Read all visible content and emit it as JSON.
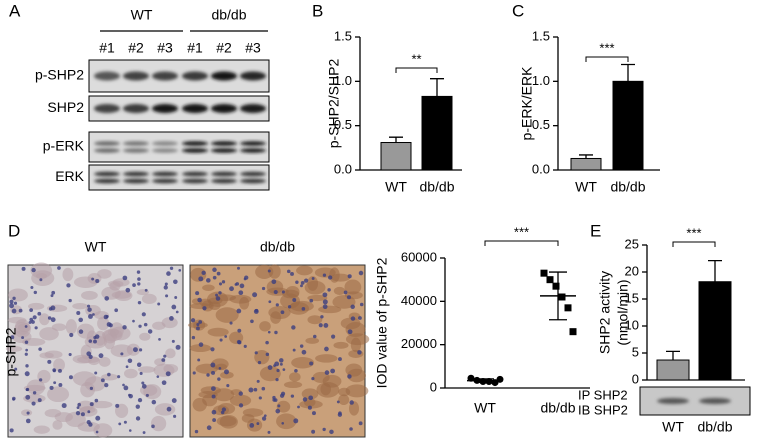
{
  "panel_labels": [
    "A",
    "B",
    "C",
    "D",
    "E"
  ],
  "blot_a": {
    "groups": [
      "WT",
      "db/db"
    ],
    "lanes": [
      "#1",
      "#2",
      "#3",
      "#1",
      "#2",
      "#3"
    ],
    "rows": [
      "p-SHP2",
      "SHP2",
      "p-ERK",
      "ERK"
    ]
  },
  "histology_d": {
    "columns": [
      "WT",
      "db/db"
    ],
    "row_label": "p-SHP2"
  },
  "blot_e": {
    "rows": [
      "IP SHP2",
      "IB SHP2"
    ]
  },
  "chart_data": [
    {
      "type": "bar",
      "ylabel": "p-SHP2/SHP2",
      "categories": [
        "WT",
        "db/db"
      ],
      "values": [
        0.31,
        0.83
      ],
      "errors": [
        0.06,
        0.2
      ],
      "colors": [
        "#999999",
        "#000000"
      ],
      "ylim": [
        0,
        1.5
      ],
      "yticks": [
        {
          "value": 0,
          "label": "0.0"
        },
        {
          "value": 0.5,
          "label": "0.5"
        },
        {
          "value": 1,
          "label": "1.0"
        },
        {
          "value": 1.5,
          "label": "1.5"
        }
      ],
      "annotation": "**"
    },
    {
      "type": "bar",
      "ylabel": "p-ERK/ERK",
      "categories": [
        "WT",
        "db/db"
      ],
      "values": [
        0.13,
        1.0
      ],
      "errors": [
        0.04,
        0.19
      ],
      "colors": [
        "#999999",
        "#000000"
      ],
      "ylim": [
        0,
        1.5
      ],
      "yticks": [
        {
          "value": 0,
          "label": "0.0"
        },
        {
          "value": 0.5,
          "label": "0.5"
        },
        {
          "value": 1,
          "label": "1.0"
        },
        {
          "value": 1.5,
          "label": "1.5"
        }
      ],
      "annotation": "***"
    },
    {
      "type": "strip",
      "ylabel": "IOD value of p-SHP2",
      "categories": [
        "WT",
        "db/db"
      ],
      "points": [
        [
          4500,
          3500,
          3000,
          3000,
          2500,
          4000
        ],
        [
          53000,
          50000,
          47000,
          42000,
          37000,
          26000
        ]
      ],
      "means": [
        3400,
        42500
      ],
      "sds": [
        800,
        11000
      ],
      "markers": [
        "circle",
        "square"
      ],
      "ylim": [
        0,
        60000
      ],
      "yticks": [
        0,
        20000,
        40000,
        60000
      ],
      "annotation": "***"
    },
    {
      "type": "bar",
      "ylabel": [
        "SHP2 activity",
        "(nmol/min)"
      ],
      "categories": [
        "WT",
        "db/db"
      ],
      "values": [
        3.7,
        18.2
      ],
      "errors": [
        1.6,
        3.9
      ],
      "colors": [
        "#999999",
        "#000000"
      ],
      "ylim": [
        0,
        25
      ],
      "yticks": [
        0,
        5,
        10,
        15,
        20,
        25
      ],
      "annotation": "***"
    }
  ]
}
